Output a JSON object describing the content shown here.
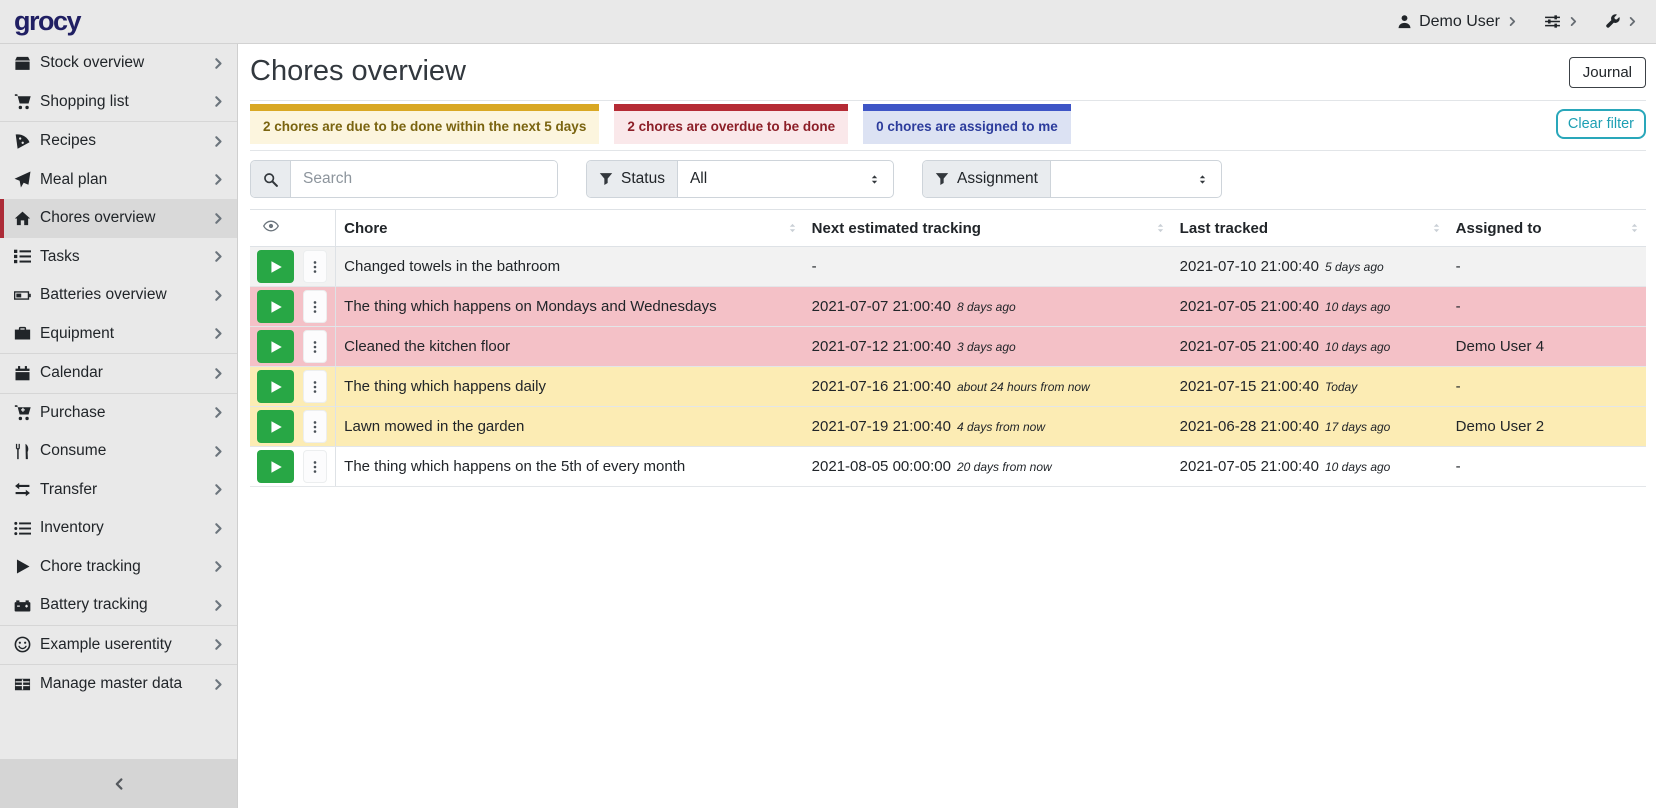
{
  "navbar": {
    "logo_text": "grocy",
    "user_label": "Demo User",
    "user_icon": "person-icon",
    "settings_icon": "sliders-icon",
    "admin_icon": "wrench-icon",
    "menu_chevron_icon": "chevron-right-icon"
  },
  "sidebar": {
    "items": [
      {
        "label": "Stock overview",
        "icon": "box-icon",
        "active": false,
        "divider_after": false,
        "submenu": false
      },
      {
        "label": "Shopping list",
        "icon": "shopping-cart-icon",
        "active": false,
        "divider_after": true,
        "submenu": false
      },
      {
        "label": "Recipes",
        "icon": "pizza-icon",
        "active": false,
        "divider_after": false,
        "submenu": false
      },
      {
        "label": "Meal plan",
        "icon": "paper-plane-icon",
        "active": false,
        "divider_after": false,
        "submenu": false
      },
      {
        "label": "Chores overview",
        "icon": "home-icon",
        "active": true,
        "divider_after": false,
        "submenu": false
      },
      {
        "label": "Tasks",
        "icon": "tasks-icon",
        "active": false,
        "divider_after": false,
        "submenu": false
      },
      {
        "label": "Batteries overview",
        "icon": "battery-icon",
        "active": false,
        "divider_after": false,
        "submenu": false
      },
      {
        "label": "Equipment",
        "icon": "toolbox-icon",
        "active": false,
        "divider_after": true,
        "submenu": false
      },
      {
        "label": "Calendar",
        "icon": "calendar-icon",
        "active": false,
        "divider_after": true,
        "submenu": false
      },
      {
        "label": "Purchase",
        "icon": "cart-plus-icon",
        "active": false,
        "divider_after": false,
        "submenu": false
      },
      {
        "label": "Consume",
        "icon": "utensils-icon",
        "active": false,
        "divider_after": false,
        "submenu": false
      },
      {
        "label": "Transfer",
        "icon": "exchange-icon",
        "active": false,
        "divider_after": false,
        "submenu": false
      },
      {
        "label": "Inventory",
        "icon": "list-icon",
        "active": false,
        "divider_after": false,
        "submenu": false
      },
      {
        "label": "Chore tracking",
        "icon": "play-icon",
        "active": false,
        "divider_after": false,
        "submenu": false
      },
      {
        "label": "Battery tracking",
        "icon": "car-battery-icon",
        "active": false,
        "divider_after": true,
        "submenu": false
      },
      {
        "label": "Example userentity",
        "icon": "smiley-icon",
        "active": false,
        "divider_after": true,
        "submenu": false
      },
      {
        "label": "Manage master data",
        "icon": "table-icon",
        "active": false,
        "divider_after": false,
        "submenu": true
      }
    ],
    "collapse_icon": "chevron-left-icon"
  },
  "page": {
    "title": "Chores overview",
    "journal_button": "Journal"
  },
  "filters": {
    "chips": [
      {
        "text": "2 chores are due to be done within the next 5 days",
        "accent": "#d9a824",
        "bg": "#fcf5de",
        "fg": "#7a6410"
      },
      {
        "text": "2 chores are overdue to be done",
        "accent": "#b52b35",
        "bg": "#fae8ea",
        "fg": "#8c1f28"
      },
      {
        "text": "0 chores are assigned to me",
        "accent": "#3e55c6",
        "bg": "#dce2f3",
        "fg": "#2c3c9c"
      }
    ],
    "clear_button": {
      "label": "Clear filter",
      "color": "#21a6b8"
    },
    "search": {
      "placeholder": "Search",
      "icon": "magnifier-icon"
    },
    "status": {
      "label": "Status",
      "value": "All",
      "icon": "funnel-icon",
      "caret_icon": "caret-updown-icon"
    },
    "assignment": {
      "label": "Assignment",
      "value": "",
      "icon": "funnel-icon",
      "caret_icon": "caret-updown-icon"
    }
  },
  "table": {
    "visibility_icon": "eye-icon",
    "sort_icon": "sort-icon",
    "row_play_icon": "play-icon",
    "row_menu_icon": "ellipsis-v-icon",
    "columns": [
      "Chore",
      "Next estimated tracking",
      "Last tracked",
      "Assigned to"
    ],
    "rows": [
      {
        "chore": "Changed towels in the bathroom",
        "next": "-",
        "next_ago": "",
        "last": "2021-07-10 21:00:40",
        "last_ago": "5 days ago",
        "assigned": "-",
        "state": "stripe"
      },
      {
        "chore": "The thing which happens on Mondays and Wednesdays",
        "next": "2021-07-07 21:00:40",
        "next_ago": "8 days ago",
        "last": "2021-07-05 21:00:40",
        "last_ago": "10 days ago",
        "assigned": "-",
        "state": "overdue"
      },
      {
        "chore": "Cleaned the kitchen floor",
        "next": "2021-07-12 21:00:40",
        "next_ago": "3 days ago",
        "last": "2021-07-05 21:00:40",
        "last_ago": "10 days ago",
        "assigned": "Demo User 4",
        "state": "overdue"
      },
      {
        "chore": "The thing which happens daily",
        "next": "2021-07-16 21:00:40",
        "next_ago": "about 24 hours from now",
        "last": "2021-07-15 21:00:40",
        "last_ago": "Today",
        "assigned": "-",
        "state": "due"
      },
      {
        "chore": "Lawn mowed in the garden",
        "next": "2021-07-19 21:00:40",
        "next_ago": "4 days from now",
        "last": "2021-06-28 21:00:40",
        "last_ago": "17 days ago",
        "assigned": "Demo User 2",
        "state": "due"
      },
      {
        "chore": "The thing which happens on the 5th of every month",
        "next": "2021-08-05 00:00:00",
        "next_ago": "20 days from now",
        "last": "2021-07-05 21:00:40",
        "last_ago": "10 days ago",
        "assigned": "-",
        "state": "none"
      }
    ]
  },
  "colors": {
    "overdue_row": "#f4c1c7",
    "due_row": "#fcecb4",
    "stripe_row": "#f2f2f2",
    "play_green": "#28a745",
    "active_accent": "#ac2b37",
    "logo": "#201f63"
  }
}
